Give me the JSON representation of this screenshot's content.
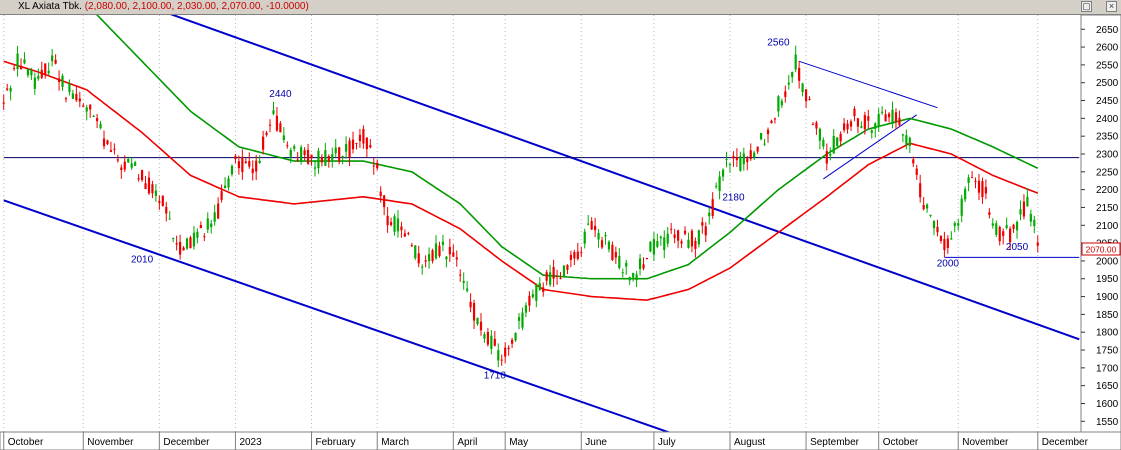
{
  "window": {
    "title": "XL Axiata Tbk.",
    "ohlc": "(2,080.00, 2,100.00, 2,030.00, 2,070.00, -10.0000)",
    "last_price_badge": "2070.00"
  },
  "chart_data": {
    "type": "candlestick",
    "title": "XL Axiata Tbk.",
    "y_ticks": [
      1550,
      1600,
      1650,
      1700,
      1750,
      1800,
      1850,
      1900,
      1950,
      2000,
      2050,
      2100,
      2150,
      2200,
      2250,
      2300,
      2350,
      2400,
      2450,
      2500,
      2550,
      2600,
      2650
    ],
    "ylim": [
      1520,
      2690
    ],
    "x_ticks": [
      {
        "label": "October",
        "i": 0
      },
      {
        "label": "November",
        "i": 23
      },
      {
        "label": "December",
        "i": 45
      },
      {
        "label": "2023",
        "i": 67
      },
      {
        "label": "February",
        "i": 89
      },
      {
        "label": "March",
        "i": 108
      },
      {
        "label": "April",
        "i": 130
      },
      {
        "label": "May",
        "i": 145
      },
      {
        "label": "June",
        "i": 167
      },
      {
        "label": "July",
        "i": 188
      },
      {
        "label": "August",
        "i": 210
      },
      {
        "label": "September",
        "i": 232
      },
      {
        "label": "October",
        "i": 253
      },
      {
        "label": "November",
        "i": 276
      },
      {
        "label": "December",
        "i": 299
      }
    ],
    "price_anchors": [
      [
        0,
        2440
      ],
      [
        4,
        2560
      ],
      [
        10,
        2500
      ],
      [
        14,
        2570
      ],
      [
        18,
        2480
      ],
      [
        25,
        2420
      ],
      [
        32,
        2290
      ],
      [
        40,
        2240
      ],
      [
        46,
        2160
      ],
      [
        50,
        2040
      ],
      [
        55,
        2060
      ],
      [
        62,
        2140
      ],
      [
        67,
        2290
      ],
      [
        72,
        2250
      ],
      [
        78,
        2400
      ],
      [
        84,
        2300
      ],
      [
        90,
        2280
      ],
      [
        98,
        2300
      ],
      [
        104,
        2350
      ],
      [
        108,
        2250
      ],
      [
        111,
        2110
      ],
      [
        117,
        2080
      ],
      [
        121,
        1970
      ],
      [
        126,
        2040
      ],
      [
        130,
        2020
      ],
      [
        134,
        1900
      ],
      [
        138,
        1810
      ],
      [
        142,
        1760
      ],
      [
        144,
        1720
      ],
      [
        148,
        1800
      ],
      [
        152,
        1880
      ],
      [
        158,
        1960
      ],
      [
        164,
        1990
      ],
      [
        170,
        2100
      ],
      [
        176,
        2020
      ],
      [
        182,
        1960
      ],
      [
        188,
        2040
      ],
      [
        194,
        2070
      ],
      [
        200,
        2060
      ],
      [
        204,
        2110
      ],
      [
        208,
        2260
      ],
      [
        214,
        2280
      ],
      [
        220,
        2350
      ],
      [
        225,
        2460
      ],
      [
        229,
        2560
      ],
      [
        234,
        2400
      ],
      [
        238,
        2290
      ],
      [
        242,
        2360
      ],
      [
        246,
        2400
      ],
      [
        250,
        2380
      ],
      [
        256,
        2420
      ],
      [
        262,
        2330
      ],
      [
        266,
        2160
      ],
      [
        272,
        2040
      ],
      [
        276,
        2120
      ],
      [
        280,
        2250
      ],
      [
        284,
        2180
      ],
      [
        288,
        2070
      ],
      [
        292,
        2080
      ],
      [
        296,
        2170
      ],
      [
        299,
        2070
      ]
    ],
    "moving_averages": [
      {
        "color": "#009900",
        "anchors": [
          [
            0,
            2800
          ],
          [
            10,
            2820
          ],
          [
            24,
            2720
          ],
          [
            40,
            2560
          ],
          [
            54,
            2420
          ],
          [
            68,
            2320
          ],
          [
            84,
            2280
          ],
          [
            104,
            2280
          ],
          [
            118,
            2250
          ],
          [
            132,
            2160
          ],
          [
            144,
            2040
          ],
          [
            156,
            1960
          ],
          [
            170,
            1950
          ],
          [
            186,
            1950
          ],
          [
            198,
            1990
          ],
          [
            210,
            2080
          ],
          [
            224,
            2200
          ],
          [
            238,
            2300
          ],
          [
            250,
            2370
          ],
          [
            262,
            2400
          ],
          [
            274,
            2370
          ],
          [
            286,
            2320
          ],
          [
            299,
            2260
          ]
        ]
      },
      {
        "color": "#ee0000",
        "anchors": [
          [
            0,
            2560
          ],
          [
            10,
            2530
          ],
          [
            24,
            2480
          ],
          [
            40,
            2360
          ],
          [
            54,
            2240
          ],
          [
            68,
            2180
          ],
          [
            84,
            2160
          ],
          [
            104,
            2180
          ],
          [
            118,
            2160
          ],
          [
            132,
            2090
          ],
          [
            144,
            2000
          ],
          [
            156,
            1920
          ],
          [
            170,
            1900
          ],
          [
            186,
            1890
          ],
          [
            198,
            1920
          ],
          [
            210,
            1980
          ],
          [
            224,
            2080
          ],
          [
            238,
            2180
          ],
          [
            250,
            2270
          ],
          [
            262,
            2330
          ],
          [
            274,
            2300
          ],
          [
            286,
            2240
          ],
          [
            299,
            2190
          ]
        ]
      }
    ],
    "trend_lines": [
      {
        "color": "#0000cc",
        "from": [
          0,
          2860
        ],
        "to": [
          311,
          1780
        ],
        "width": 2
      },
      {
        "color": "#0000cc",
        "from": [
          0,
          2170
        ],
        "to": [
          195,
          1510
        ],
        "width": 2
      },
      {
        "color": "#000066",
        "from": [
          0,
          2290
        ],
        "to": [
          311,
          2290
        ],
        "width": 1
      },
      {
        "color": "#0000cc",
        "from": [
          272,
          2010
        ],
        "to": [
          311,
          2010
        ],
        "width": 1
      },
      {
        "color": "#0000cc",
        "from": [
          230,
          2560
        ],
        "to": [
          270,
          2430
        ],
        "width": 1
      },
      {
        "color": "#0000cc",
        "from": [
          237,
          2230
        ],
        "to": [
          264,
          2410
        ],
        "width": 1
      }
    ],
    "annotations": [
      {
        "text": "2560",
        "i": 224,
        "price": 2605
      },
      {
        "text": "2440",
        "i": 80,
        "price": 2460
      },
      {
        "text": "2010",
        "i": 40,
        "price": 1995
      },
      {
        "text": "2180",
        "i": 211,
        "price": 2170
      },
      {
        "text": "1710",
        "i": 142,
        "price": 1670
      },
      {
        "text": "2000",
        "i": 273,
        "price": 1985
      },
      {
        "text": "2050",
        "i": 293,
        "price": 2030
      }
    ]
  }
}
